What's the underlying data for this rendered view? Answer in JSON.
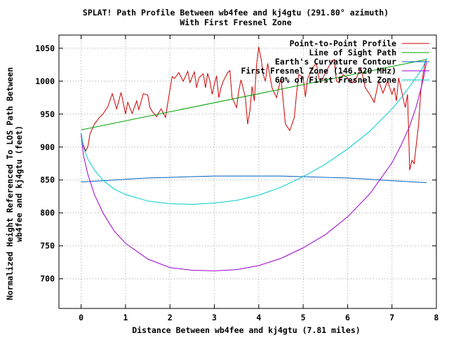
{
  "chart_data": {
    "type": "line",
    "title": "SPLAT! Path Profile Between wb4fee and kj4gtu (291.80° azimuth)",
    "subtitle": "With First Fresnel Zone",
    "xlabel": "Distance Between wb4fee and kj4gtu (7.81 miles)",
    "ylabel_line1": "Normalized Height Referenced To LOS Path Between",
    "ylabel_line2": "wb4fee and kj4gtu (feet)",
    "xlim": [
      -0.5,
      8
    ],
    "ylim": [
      655,
      1070
    ],
    "xticks": [
      0,
      1,
      2,
      3,
      4,
      5,
      6,
      7,
      8
    ],
    "yticks": [
      700,
      750,
      800,
      850,
      900,
      950,
      1000,
      1050
    ],
    "grid": true,
    "legend_position": "top-right",
    "series": [
      {
        "name": "Point-to-Point Profile",
        "color": "#cc0000",
        "x": [
          0,
          0.05,
          0.1,
          0.15,
          0.2,
          0.3,
          0.4,
          0.5,
          0.6,
          0.7,
          0.8,
          0.9,
          1.0,
          1.05,
          1.15,
          1.25,
          1.3,
          1.4,
          1.5,
          1.55,
          1.6,
          1.7,
          1.8,
          1.9,
          2.0,
          2.05,
          2.1,
          2.2,
          2.3,
          2.4,
          2.45,
          2.55,
          2.6,
          2.65,
          2.75,
          2.8,
          2.85,
          2.9,
          2.95,
          3.0,
          3.05,
          3.1,
          3.15,
          3.2,
          3.3,
          3.35,
          3.4,
          3.5,
          3.55,
          3.6,
          3.7,
          3.75,
          3.8,
          3.85,
          3.9,
          3.95,
          4.0,
          4.05,
          4.1,
          4.15,
          4.2,
          4.3,
          4.4,
          4.5,
          4.6,
          4.7,
          4.8,
          4.85,
          4.9,
          5.0,
          5.05,
          5.1,
          5.2,
          5.3,
          5.35,
          5.4,
          5.5,
          5.6,
          5.7,
          5.75,
          5.8,
          5.9,
          6.0,
          6.1,
          6.2,
          6.3,
          6.4,
          6.5,
          6.6,
          6.7,
          6.8,
          6.9,
          7.0,
          7.05,
          7.1,
          7.15,
          7.2,
          7.25,
          7.3,
          7.35,
          7.4,
          7.45,
          7.5,
          7.55,
          7.6,
          7.65,
          7.7,
          7.75,
          7.78
        ],
        "values": [
          917,
          903,
          894,
          900,
          920,
          935,
          944,
          951,
          961,
          981,
          958,
          983,
          950,
          968,
          951,
          970,
          957,
          981,
          979,
          960,
          954,
          946,
          958,
          945,
          987,
          1007,
          1004,
          1013,
          1000,
          1015,
          998,
          1014,
          990,
          1005,
          1011,
          990,
          1012,
          1000,
          980,
          995,
          1008,
          975,
          990,
          1000,
          1013,
          1016,
          975,
          960,
          985,
          1002,
          975,
          935,
          955,
          992,
          970,
          1025,
          1052,
          1035,
          1010,
          1000,
          1027,
          990,
          975,
          1005,
          935,
          925,
          945,
          980,
          1010,
          1006,
          976,
          1003,
          1020,
          1027,
          1005,
          998,
          1013,
          1025,
          1033,
          1000,
          998,
          1010,
          1005,
          997,
          1005,
          1020,
          990,
          980,
          968,
          1000,
          982,
          1000,
          980,
          990,
          970,
          1005,
          990,
          974,
          960,
          980,
          865,
          880,
          875,
          905,
          935,
          985,
          1010,
          1030,
          1033
        ]
      },
      {
        "name": "Line of Sight Path",
        "color": "#00a000",
        "x": [
          0,
          7.78
        ],
        "values": [
          926,
          1033
        ]
      },
      {
        "name": "Earth's Curvature Contour",
        "color": "#0060c0",
        "x": [
          0,
          0.5,
          1.0,
          1.5,
          2.0,
          2.5,
          3.0,
          3.5,
          4.0,
          4.5,
          5.0,
          5.5,
          6.0,
          6.5,
          7.0,
          7.5,
          7.78
        ],
        "values": [
          847,
          849,
          851,
          853,
          854,
          855,
          856,
          856,
          856,
          856,
          855,
          854,
          853,
          851,
          849,
          847,
          846
        ]
      },
      {
        "name": "First Fresnel Zone (146.520 MHz)",
        "color": "#9900cc",
        "x": [
          0,
          0.05,
          0.15,
          0.3,
          0.5,
          0.75,
          1.0,
          1.5,
          2.0,
          2.5,
          3.0,
          3.5,
          4.0,
          4.5,
          5.0,
          5.5,
          6.0,
          6.5,
          7.0,
          7.2,
          7.4,
          7.55,
          7.65,
          7.72,
          7.78
        ],
        "values": [
          920,
          888,
          859,
          828,
          799,
          772,
          754,
          730,
          717,
          713,
          712,
          714,
          720,
          731,
          747,
          767,
          794,
          829,
          876,
          902,
          932,
          962,
          988,
          1008,
          1030
        ]
      },
      {
        "name": "60% of First Fresnel Zone",
        "color": "#00cccc",
        "x": [
          0,
          0.05,
          0.15,
          0.3,
          0.5,
          0.75,
          1.0,
          1.5,
          2.0,
          2.5,
          3.0,
          3.5,
          4.0,
          4.5,
          5.0,
          5.5,
          6.0,
          6.5,
          7.0,
          7.2,
          7.4,
          7.55,
          7.65,
          7.72,
          7.78
        ],
        "values": [
          922,
          900,
          882,
          865,
          849,
          836,
          828,
          818,
          814,
          813,
          815,
          819,
          827,
          839,
          855,
          874,
          897,
          924,
          958,
          974,
          992,
          1006,
          1016,
          1025,
          1035
        ]
      }
    ]
  }
}
